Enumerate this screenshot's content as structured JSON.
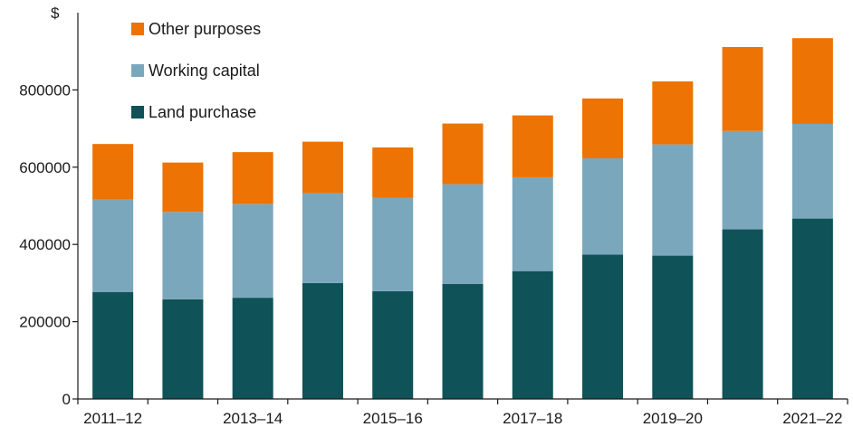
{
  "chart_data": {
    "type": "bar",
    "stacked": true,
    "ylabel": "$",
    "ylim": [
      0,
      1000000
    ],
    "yticks": [
      0,
      200000,
      400000,
      600000,
      800000
    ],
    "ytick_labels": [
      "0",
      "200000",
      "400000",
      "600000",
      "800000"
    ],
    "categories": [
      "2011–12",
      "2012–13",
      "2013–14",
      "2014–15",
      "2015–16",
      "2016–17",
      "2017–18",
      "2018–19",
      "2019–20",
      "2020–21",
      "2021–22"
    ],
    "xtick_labels": [
      "2011–12",
      "",
      "2013–14",
      "",
      "2015–16",
      "",
      "2017–18",
      "",
      "2019–20",
      "",
      "2021–22"
    ],
    "series": [
      {
        "name": "Land purchase",
        "color": "#0f5257",
        "values": [
          277000,
          258000,
          262000,
          300000,
          279000,
          298000,
          331000,
          374000,
          371000,
          439000,
          467000
        ]
      },
      {
        "name": "Working capital",
        "color": "#7ba7bd",
        "values": [
          239000,
          226000,
          243000,
          233000,
          242000,
          258000,
          243000,
          249000,
          288000,
          255000,
          245000
        ]
      },
      {
        "name": "Other purposes",
        "color": "#ec7304",
        "values": [
          144000,
          128000,
          134000,
          133000,
          130000,
          157000,
          160000,
          155000,
          163000,
          217000,
          222000
        ]
      }
    ],
    "legend": {
      "placement": "top-left",
      "order": [
        "Other purposes",
        "Working capital",
        "Land purchase"
      ]
    },
    "grid": false
  }
}
